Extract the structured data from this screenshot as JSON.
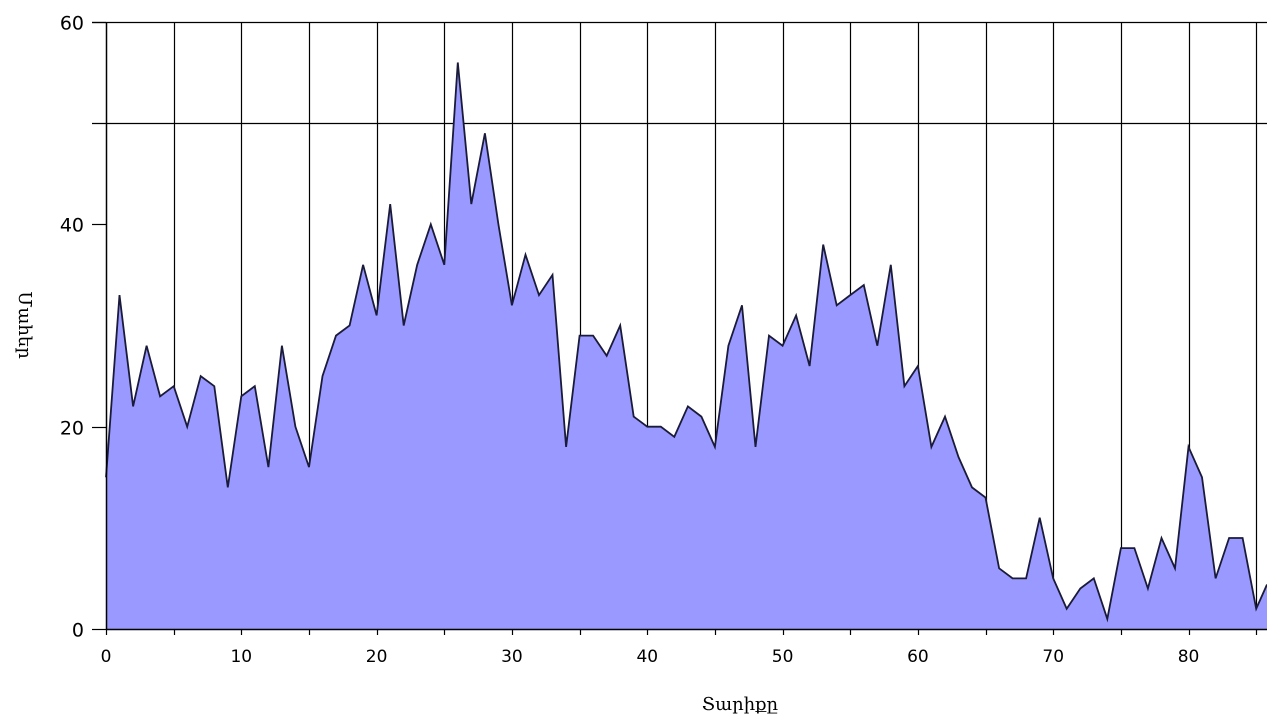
{
  "chart_data": {
    "type": "area",
    "title": "",
    "xlabel": "Տարիքը",
    "ylabel": "Մահեր",
    "xlim": [
      0,
      85.8
    ],
    "ylim": [
      0,
      60
    ],
    "x_ticks": [
      0,
      10,
      20,
      30,
      40,
      50,
      60,
      70,
      80
    ],
    "y_ticks": [
      0,
      20,
      40,
      60
    ],
    "grid": {
      "vertical_every": 5,
      "horizontal": [
        50,
        60
      ]
    },
    "colors": {
      "fill": "#9999ff",
      "line": "#1a1a3a",
      "grid": "#000000"
    },
    "x": [
      0,
      1,
      2,
      3,
      4,
      5,
      6,
      7,
      8,
      9,
      10,
      11,
      12,
      13,
      14,
      15,
      16,
      17,
      18,
      19,
      20,
      21,
      22,
      23,
      24,
      25,
      26,
      27,
      28,
      29,
      30,
      31,
      32,
      33,
      34,
      35,
      36,
      37,
      38,
      39,
      40,
      41,
      42,
      43,
      44,
      45,
      46,
      47,
      48,
      49,
      50,
      51,
      52,
      53,
      54,
      55,
      56,
      57,
      58,
      59,
      60,
      61,
      62,
      63,
      64,
      65,
      66,
      67,
      68,
      69,
      70,
      71,
      72,
      73,
      74,
      75,
      76,
      77,
      78,
      79,
      80,
      81,
      82,
      83,
      84,
      85,
      86
    ],
    "values": [
      15,
      33,
      22,
      28,
      23,
      24,
      20,
      25,
      24,
      14,
      23,
      24,
      16,
      28,
      20,
      16,
      25,
      29,
      30,
      36,
      31,
      42,
      30,
      36,
      40,
      36,
      56,
      42,
      49,
      40,
      32,
      37,
      33,
      35,
      18,
      29,
      29,
      27,
      30,
      21,
      20,
      20,
      19,
      22,
      21,
      18,
      28,
      32,
      18,
      29,
      28,
      31,
      26,
      38,
      32,
      33,
      34,
      28,
      36,
      24,
      26,
      18,
      21,
      17,
      14,
      13,
      6,
      5,
      5,
      11,
      5,
      2,
      4,
      5,
      1,
      8,
      8,
      4,
      9,
      6,
      18,
      15,
      5,
      9,
      9,
      2,
      5
    ]
  }
}
